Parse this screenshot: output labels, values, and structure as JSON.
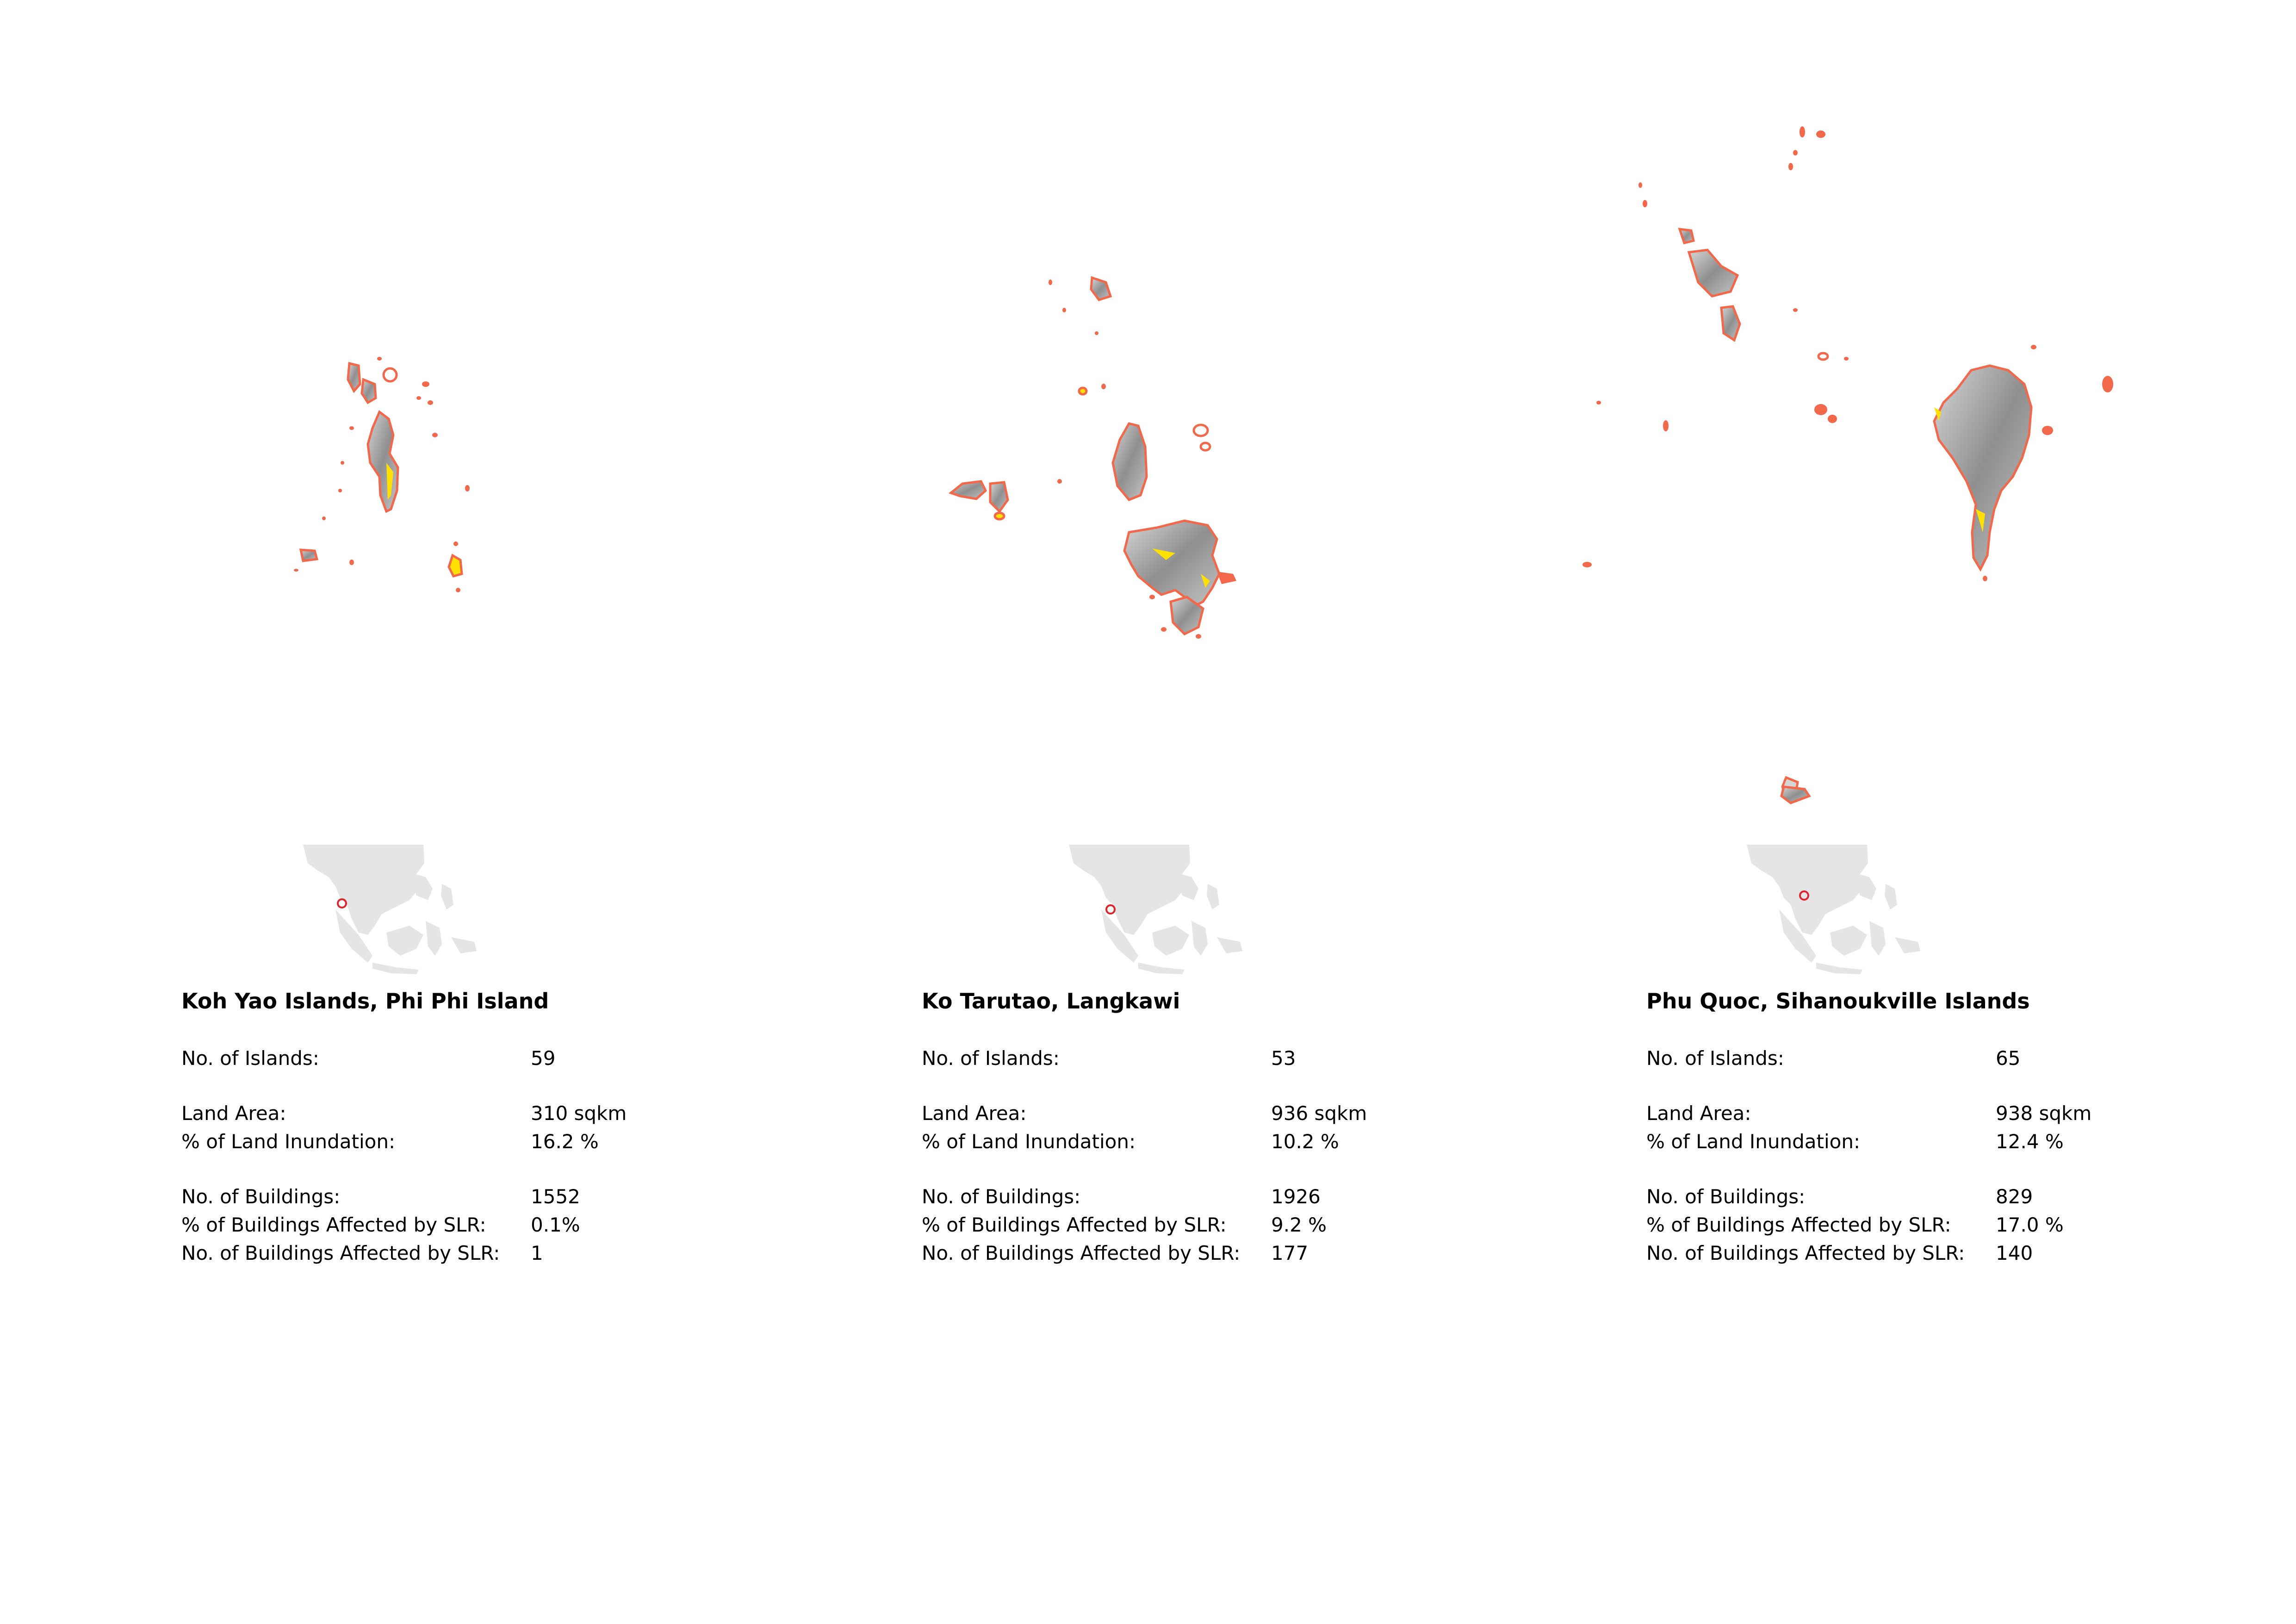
{
  "colors": {
    "coast_outline": "#f2684a",
    "inundation": "#ffe000",
    "terrain": "#9a9a9a",
    "locator_land": "#e5e5e5",
    "locator_marker": "#e0242e"
  },
  "labels": {
    "islands": "No. of Islands:",
    "land_area": "Land Area:",
    "land_inundation": "% of Land Inundation:",
    "buildings": "No. of Buildings:",
    "buildings_affected_pct": "% of Buildings Affected by SLR:",
    "buildings_affected_count": "No. of Buildings Affected by SLR:"
  },
  "sites": [
    {
      "title": "Koh Yao Islands, Phi Phi Island",
      "islands": "59",
      "land_area": "310 sqkm",
      "land_inundation": "16.2 %",
      "buildings": "1552",
      "buildings_affected_pct": "0.1%",
      "buildings_affected_count": "1"
    },
    {
      "title": "Ko Tarutao, Langkawi",
      "islands": "53",
      "land_area": "936 sqkm",
      "land_inundation": "10.2 %",
      "buildings": "1926",
      "buildings_affected_pct": "9.2 %",
      "buildings_affected_count": "177"
    },
    {
      "title": "Phu Quoc, Sihanoukville Islands",
      "islands": "65",
      "land_area": "938 sqkm",
      "land_inundation": "12.4 %",
      "buildings": "829",
      "buildings_affected_pct": "17.0 %",
      "buildings_affected_count": "140"
    }
  ]
}
